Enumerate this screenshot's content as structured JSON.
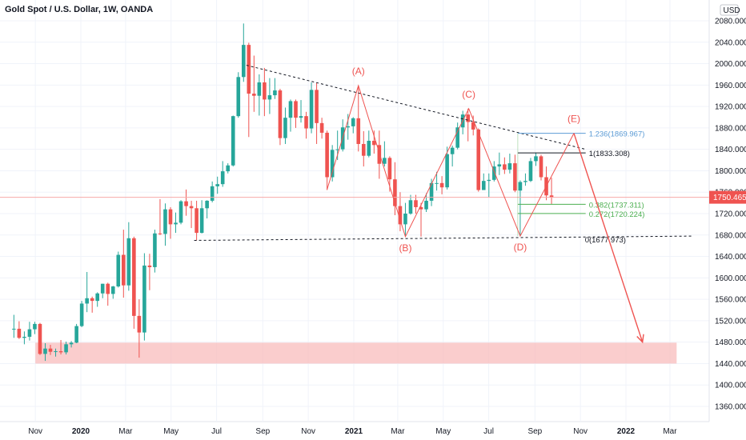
{
  "header": {
    "title": "Gold Spot / U.S. Dollar, 1W, OANDA",
    "currency": "USD"
  },
  "colors": {
    "up": "#26a69a",
    "down": "#ef5350",
    "wave": "#ef5350",
    "trendline": "#131722",
    "fib_blue": "#5b9bd5",
    "fib_green": "#4caf50",
    "support_zone": "#f8bcbc",
    "price_badge": "#ef5350"
  },
  "chart_data": {
    "type": "candlestick",
    "title": "Gold Spot / U.S. Dollar, 1W, OANDA",
    "x_ticks": [
      "Nov",
      "2020",
      "Mar",
      "May",
      "Jul",
      "Sep",
      "Nov",
      "2021",
      "Mar",
      "May",
      "Jul",
      "Sep",
      "Nov",
      "2022",
      "Mar"
    ],
    "y_ticks": [
      "2080.000",
      "2040.000",
      "2000.000",
      "1960.000",
      "1920.000",
      "1880.000",
      "1840.000",
      "1800.000",
      "1760.000",
      "1720.000",
      "1680.000",
      "1640.000",
      "1600.000",
      "1560.000",
      "1520.000",
      "1480.000",
      "1440.000",
      "1400.000",
      "1360.000"
    ],
    "ylim": [
      1330,
      2110
    ],
    "last_price": "1750.465",
    "last_price_value": 1750.465,
    "wave_labels": [
      "(A)",
      "(B)",
      "(C)",
      "(D)",
      "(E)"
    ],
    "wave_points": [
      {
        "label": "start",
        "date": "2020-11-23",
        "price": 1765
      },
      {
        "label": "(A)",
        "date": "2021-01-04",
        "price": 1959
      },
      {
        "label": "(B)",
        "date": "2021-03-08",
        "price": 1677
      },
      {
        "label": "(C)",
        "date": "2021-06-01",
        "price": 1916
      },
      {
        "label": "(D)",
        "date": "2021-08-09",
        "price": 1678
      },
      {
        "label": "(E)",
        "date": "2021-10-20",
        "price": 1870
      }
    ],
    "projection": {
      "from_date": "2021-10-20",
      "from_price": 1870,
      "to_date": "2022-01-20",
      "to_price": 1480
    },
    "fib_levels": [
      {
        "label": "1.236(1869.967)",
        "value": 1869.967,
        "color": "blue"
      },
      {
        "label": "1(1833.308)",
        "value": 1833.308,
        "color": "black"
      },
      {
        "label": "0.382(1737.311)",
        "value": 1737.311,
        "color": "green"
      },
      {
        "label": "0.272(1720.224)",
        "value": 1720.224,
        "color": "green"
      },
      {
        "label": "0(1677.973)",
        "value": 1677.973,
        "color": "black"
      }
    ],
    "trendlines": [
      {
        "from_date": "2020-08-10",
        "from_price": 1997,
        "to_date": "2021-11-08",
        "to_price": 1840,
        "style": "dashed"
      },
      {
        "from_date": "2020-06-01",
        "from_price": 1670,
        "to_date": "2022-03-31",
        "to_price": 1678,
        "style": "dashed"
      }
    ],
    "support_zone": {
      "from_date": "2019-11-01",
      "to_date": "2022-03-10",
      "low": 1440,
      "high": 1479
    },
    "candles": [
      {
        "d": "2019-09-30",
        "o": 1504,
        "h": 1531,
        "l": 1488,
        "c": 1505
      },
      {
        "d": "2019-10-07",
        "o": 1505,
        "h": 1519,
        "l": 1486,
        "c": 1488
      },
      {
        "d": "2019-10-14",
        "o": 1488,
        "h": 1500,
        "l": 1476,
        "c": 1490
      },
      {
        "d": "2019-10-21",
        "o": 1490,
        "h": 1518,
        "l": 1483,
        "c": 1504
      },
      {
        "d": "2019-10-28",
        "o": 1504,
        "h": 1518,
        "l": 1495,
        "c": 1514
      },
      {
        "d": "2019-11-04",
        "o": 1514,
        "h": 1516,
        "l": 1456,
        "c": 1458
      },
      {
        "d": "2019-11-11",
        "o": 1458,
        "h": 1478,
        "l": 1445,
        "c": 1468
      },
      {
        "d": "2019-11-18",
        "o": 1468,
        "h": 1475,
        "l": 1456,
        "c": 1462
      },
      {
        "d": "2019-11-25",
        "o": 1462,
        "h": 1468,
        "l": 1453,
        "c": 1463
      },
      {
        "d": "2019-12-02",
        "o": 1463,
        "h": 1484,
        "l": 1457,
        "c": 1461
      },
      {
        "d": "2019-12-09",
        "o": 1461,
        "h": 1481,
        "l": 1457,
        "c": 1476
      },
      {
        "d": "2019-12-16",
        "o": 1476,
        "h": 1482,
        "l": 1470,
        "c": 1479
      },
      {
        "d": "2019-12-23",
        "o": 1479,
        "h": 1514,
        "l": 1478,
        "c": 1510
      },
      {
        "d": "2019-12-30",
        "o": 1510,
        "h": 1557,
        "l": 1508,
        "c": 1552
      },
      {
        "d": "2020-01-06",
        "o": 1552,
        "h": 1611,
        "l": 1536,
        "c": 1562
      },
      {
        "d": "2020-01-13",
        "o": 1562,
        "h": 1565,
        "l": 1535,
        "c": 1557
      },
      {
        "d": "2020-01-20",
        "o": 1557,
        "h": 1573,
        "l": 1546,
        "c": 1571
      },
      {
        "d": "2020-01-27",
        "o": 1571,
        "h": 1589,
        "l": 1562,
        "c": 1589
      },
      {
        "d": "2020-02-03",
        "o": 1589,
        "h": 1591,
        "l": 1548,
        "c": 1570
      },
      {
        "d": "2020-02-10",
        "o": 1570,
        "h": 1585,
        "l": 1561,
        "c": 1584
      },
      {
        "d": "2020-02-17",
        "o": 1584,
        "h": 1649,
        "l": 1582,
        "c": 1643
      },
      {
        "d": "2020-02-24",
        "o": 1643,
        "h": 1690,
        "l": 1563,
        "c": 1586
      },
      {
        "d": "2020-03-02",
        "o": 1586,
        "h": 1704,
        "l": 1576,
        "c": 1674
      },
      {
        "d": "2020-03-09",
        "o": 1674,
        "h": 1677,
        "l": 1505,
        "c": 1529
      },
      {
        "d": "2020-03-16",
        "o": 1529,
        "h": 1560,
        "l": 1451,
        "c": 1498
      },
      {
        "d": "2020-03-23",
        "o": 1498,
        "h": 1646,
        "l": 1483,
        "c": 1623
      },
      {
        "d": "2020-03-30",
        "o": 1623,
        "h": 1645,
        "l": 1577,
        "c": 1620
      },
      {
        "d": "2020-04-06",
        "o": 1620,
        "h": 1690,
        "l": 1610,
        "c": 1683
      },
      {
        "d": "2020-04-13",
        "o": 1683,
        "h": 1747,
        "l": 1680,
        "c": 1682
      },
      {
        "d": "2020-04-20",
        "o": 1682,
        "h": 1739,
        "l": 1660,
        "c": 1728
      },
      {
        "d": "2020-04-27",
        "o": 1728,
        "h": 1732,
        "l": 1673,
        "c": 1700
      },
      {
        "d": "2020-05-04",
        "o": 1700,
        "h": 1722,
        "l": 1684,
        "c": 1703
      },
      {
        "d": "2020-05-11",
        "o": 1703,
        "h": 1745,
        "l": 1700,
        "c": 1743
      },
      {
        "d": "2020-05-18",
        "o": 1743,
        "h": 1765,
        "l": 1716,
        "c": 1734
      },
      {
        "d": "2020-05-25",
        "o": 1734,
        "h": 1744,
        "l": 1693,
        "c": 1730
      },
      {
        "d": "2020-06-01",
        "o": 1730,
        "h": 1744,
        "l": 1670,
        "c": 1684
      },
      {
        "d": "2020-06-08",
        "o": 1684,
        "h": 1745,
        "l": 1683,
        "c": 1730
      },
      {
        "d": "2020-06-15",
        "o": 1730,
        "h": 1745,
        "l": 1711,
        "c": 1744
      },
      {
        "d": "2020-06-22",
        "o": 1744,
        "h": 1780,
        "l": 1741,
        "c": 1771
      },
      {
        "d": "2020-06-29",
        "o": 1771,
        "h": 1789,
        "l": 1757,
        "c": 1775
      },
      {
        "d": "2020-07-06",
        "o": 1775,
        "h": 1818,
        "l": 1770,
        "c": 1799
      },
      {
        "d": "2020-07-13",
        "o": 1799,
        "h": 1814,
        "l": 1795,
        "c": 1810
      },
      {
        "d": "2020-07-20",
        "o": 1810,
        "h": 1903,
        "l": 1808,
        "c": 1902
      },
      {
        "d": "2020-07-27",
        "o": 1902,
        "h": 1984,
        "l": 1899,
        "c": 1975
      },
      {
        "d": "2020-08-03",
        "o": 1975,
        "h": 2075,
        "l": 1966,
        "c": 2035
      },
      {
        "d": "2020-08-10",
        "o": 2035,
        "h": 2039,
        "l": 1863,
        "c": 1944
      },
      {
        "d": "2020-08-17",
        "o": 1944,
        "h": 2015,
        "l": 1910,
        "c": 1940
      },
      {
        "d": "2020-08-24",
        "o": 1940,
        "h": 1980,
        "l": 1903,
        "c": 1965
      },
      {
        "d": "2020-08-31",
        "o": 1965,
        "h": 1992,
        "l": 1902,
        "c": 1933
      },
      {
        "d": "2020-09-07",
        "o": 1933,
        "h": 1973,
        "l": 1906,
        "c": 1941
      },
      {
        "d": "2020-09-14",
        "o": 1941,
        "h": 1973,
        "l": 1934,
        "c": 1950
      },
      {
        "d": "2020-09-21",
        "o": 1950,
        "h": 1953,
        "l": 1848,
        "c": 1861
      },
      {
        "d": "2020-09-28",
        "o": 1861,
        "h": 1918,
        "l": 1850,
        "c": 1899
      },
      {
        "d": "2020-10-05",
        "o": 1899,
        "h": 1933,
        "l": 1873,
        "c": 1930
      },
      {
        "d": "2020-10-12",
        "o": 1930,
        "h": 1933,
        "l": 1880,
        "c": 1899
      },
      {
        "d": "2020-10-19",
        "o": 1899,
        "h": 1932,
        "l": 1890,
        "c": 1902
      },
      {
        "d": "2020-10-26",
        "o": 1902,
        "h": 1910,
        "l": 1860,
        "c": 1879
      },
      {
        "d": "2020-11-02",
        "o": 1879,
        "h": 1965,
        "l": 1870,
        "c": 1951
      },
      {
        "d": "2020-11-09",
        "o": 1951,
        "h": 1964,
        "l": 1850,
        "c": 1889
      },
      {
        "d": "2020-11-16",
        "o": 1889,
        "h": 1899,
        "l": 1860,
        "c": 1871
      },
      {
        "d": "2020-11-23",
        "o": 1871,
        "h": 1875,
        "l": 1764,
        "c": 1788
      },
      {
        "d": "2020-11-30",
        "o": 1788,
        "h": 1848,
        "l": 1780,
        "c": 1839
      },
      {
        "d": "2020-12-07",
        "o": 1839,
        "h": 1875,
        "l": 1820,
        "c": 1840
      },
      {
        "d": "2020-12-14",
        "o": 1840,
        "h": 1896,
        "l": 1836,
        "c": 1881
      },
      {
        "d": "2020-12-21",
        "o": 1881,
        "h": 1906,
        "l": 1858,
        "c": 1883
      },
      {
        "d": "2020-12-28",
        "o": 1883,
        "h": 1900,
        "l": 1870,
        "c": 1898
      },
      {
        "d": "2021-01-04",
        "o": 1898,
        "h": 1959,
        "l": 1836,
        "c": 1850
      },
      {
        "d": "2021-01-11",
        "o": 1850,
        "h": 1874,
        "l": 1808,
        "c": 1828
      },
      {
        "d": "2021-01-18",
        "o": 1828,
        "h": 1875,
        "l": 1825,
        "c": 1856
      },
      {
        "d": "2021-01-25",
        "o": 1856,
        "h": 1875,
        "l": 1832,
        "c": 1848
      },
      {
        "d": "2021-02-01",
        "o": 1848,
        "h": 1875,
        "l": 1785,
        "c": 1813
      },
      {
        "d": "2021-02-08",
        "o": 1813,
        "h": 1855,
        "l": 1808,
        "c": 1824
      },
      {
        "d": "2021-02-15",
        "o": 1824,
        "h": 1827,
        "l": 1761,
        "c": 1784
      },
      {
        "d": "2021-02-22",
        "o": 1784,
        "h": 1816,
        "l": 1717,
        "c": 1734
      },
      {
        "d": "2021-03-01",
        "o": 1734,
        "h": 1760,
        "l": 1687,
        "c": 1700
      },
      {
        "d": "2021-03-08",
        "o": 1700,
        "h": 1740,
        "l": 1677,
        "c": 1720
      },
      {
        "d": "2021-03-15",
        "o": 1720,
        "h": 1755,
        "l": 1718,
        "c": 1745
      },
      {
        "d": "2021-03-22",
        "o": 1745,
        "h": 1755,
        "l": 1720,
        "c": 1732
      },
      {
        "d": "2021-03-29",
        "o": 1732,
        "h": 1740,
        "l": 1677,
        "c": 1728
      },
      {
        "d": "2021-04-05",
        "o": 1728,
        "h": 1758,
        "l": 1723,
        "c": 1744
      },
      {
        "d": "2021-04-12",
        "o": 1744,
        "h": 1785,
        "l": 1734,
        "c": 1777
      },
      {
        "d": "2021-04-19",
        "o": 1777,
        "h": 1798,
        "l": 1763,
        "c": 1777
      },
      {
        "d": "2021-04-26",
        "o": 1777,
        "h": 1790,
        "l": 1756,
        "c": 1769
      },
      {
        "d": "2021-05-03",
        "o": 1769,
        "h": 1845,
        "l": 1765,
        "c": 1831
      },
      {
        "d": "2021-05-10",
        "o": 1831,
        "h": 1847,
        "l": 1808,
        "c": 1843
      },
      {
        "d": "2021-05-17",
        "o": 1843,
        "h": 1890,
        "l": 1840,
        "c": 1881
      },
      {
        "d": "2021-05-24",
        "o": 1881,
        "h": 1912,
        "l": 1868,
        "c": 1905
      },
      {
        "d": "2021-05-31",
        "o": 1905,
        "h": 1916,
        "l": 1855,
        "c": 1891
      },
      {
        "d": "2021-06-07",
        "o": 1891,
        "h": 1903,
        "l": 1866,
        "c": 1877
      },
      {
        "d": "2021-06-14",
        "o": 1877,
        "h": 1879,
        "l": 1761,
        "c": 1764
      },
      {
        "d": "2021-06-21",
        "o": 1764,
        "h": 1795,
        "l": 1768,
        "c": 1781
      },
      {
        "d": "2021-06-28",
        "o": 1781,
        "h": 1795,
        "l": 1750,
        "c": 1783
      },
      {
        "d": "2021-07-05",
        "o": 1783,
        "h": 1818,
        "l": 1780,
        "c": 1808
      },
      {
        "d": "2021-07-12",
        "o": 1808,
        "h": 1834,
        "l": 1792,
        "c": 1812
      },
      {
        "d": "2021-07-19",
        "o": 1812,
        "h": 1825,
        "l": 1794,
        "c": 1802
      },
      {
        "d": "2021-07-26",
        "o": 1802,
        "h": 1832,
        "l": 1795,
        "c": 1814
      },
      {
        "d": "2021-08-02",
        "o": 1814,
        "h": 1830,
        "l": 1760,
        "c": 1763
      },
      {
        "d": "2021-08-09",
        "o": 1763,
        "h": 1782,
        "l": 1678,
        "c": 1779
      },
      {
        "d": "2021-08-16",
        "o": 1779,
        "h": 1795,
        "l": 1772,
        "c": 1781
      },
      {
        "d": "2021-08-23",
        "o": 1781,
        "h": 1824,
        "l": 1779,
        "c": 1818
      },
      {
        "d": "2021-08-30",
        "o": 1818,
        "h": 1834,
        "l": 1809,
        "c": 1827
      },
      {
        "d": "2021-09-06",
        "o": 1827,
        "h": 1830,
        "l": 1782,
        "c": 1788
      },
      {
        "d": "2021-09-13",
        "o": 1788,
        "h": 1808,
        "l": 1745,
        "c": 1754
      },
      {
        "d": "2021-09-20",
        "o": 1754,
        "h": 1787,
        "l": 1738,
        "c": 1750
      }
    ]
  }
}
